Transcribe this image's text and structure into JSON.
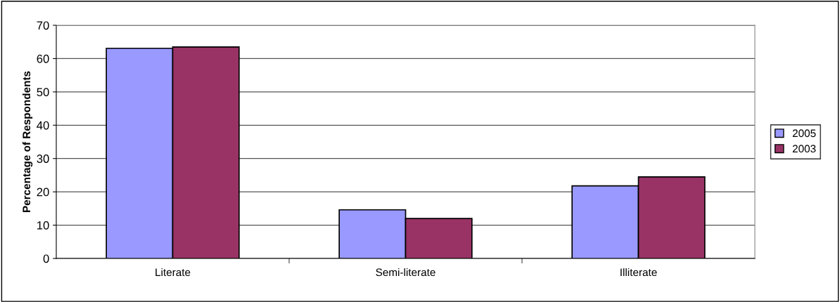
{
  "chart_data": {
    "type": "bar",
    "ylabel": "Percentage of Respondents",
    "categories": [
      "Literate",
      "Semi-literate",
      "Illiterate"
    ],
    "series": [
      {
        "name": "2005",
        "color": "#9999ff",
        "values": [
          63.1,
          14.6,
          21.8
        ]
      },
      {
        "name": "2003",
        "color": "#993366",
        "values": [
          63.5,
          12.0,
          24.5
        ]
      }
    ],
    "ylim": [
      0,
      70
    ],
    "yticks": [
      0,
      10,
      20,
      30,
      40,
      50,
      60,
      70
    ],
    "grid": "y",
    "legend": "right"
  }
}
